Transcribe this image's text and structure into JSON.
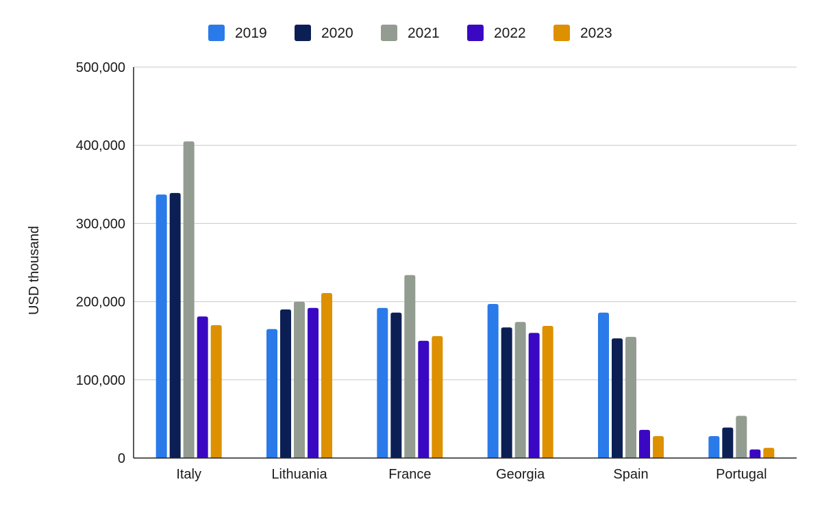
{
  "chart_data": {
    "type": "bar",
    "title": "",
    "xlabel": "",
    "ylabel": "USD thousand",
    "ylim": [
      0,
      500000
    ],
    "yticks": [
      0,
      100000,
      200000,
      300000,
      400000,
      500000
    ],
    "ytick_labels": [
      "0",
      "100,000",
      "200,000",
      "300,000",
      "400,000",
      "500,000"
    ],
    "grid": true,
    "legend_position": "top-center",
    "categories": [
      "Italy",
      "Lithuania",
      "France",
      "Georgia",
      "Spain",
      "Portugal"
    ],
    "series": [
      {
        "name": "2019",
        "color": "#2a7aea",
        "values": [
          337000,
          165000,
          192000,
          197000,
          186000,
          28000
        ]
      },
      {
        "name": "2020",
        "color": "#0c1f55",
        "values": [
          339000,
          190000,
          186000,
          167000,
          153000,
          39000
        ]
      },
      {
        "name": "2021",
        "color": "#939c90",
        "values": [
          405000,
          200000,
          234000,
          174000,
          155000,
          54000
        ]
      },
      {
        "name": "2022",
        "color": "#3a08c2",
        "values": [
          181000,
          192000,
          150000,
          160000,
          36000,
          11000
        ]
      },
      {
        "name": "2023",
        "color": "#dd9000",
        "values": [
          170000,
          211000,
          156000,
          169000,
          28000,
          13000
        ]
      }
    ]
  }
}
